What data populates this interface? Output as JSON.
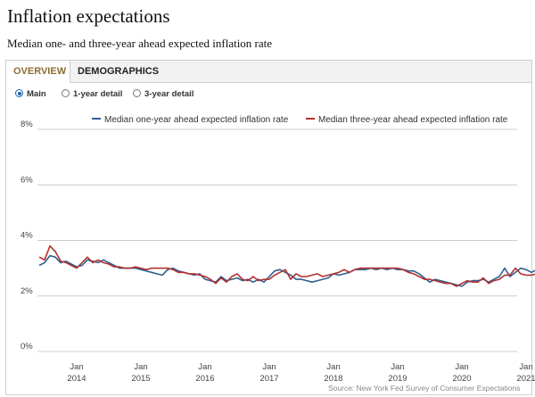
{
  "title": "Inflation expectations",
  "subtitle": "Median one- and three-year ahead expected inflation rate",
  "tabs": [
    {
      "label": "OVERVIEW",
      "active": true
    },
    {
      "label": "DEMOGRAPHICS",
      "active": false
    }
  ],
  "radios": [
    {
      "label": "Main",
      "selected": true
    },
    {
      "label": "1-year detail",
      "selected": false
    },
    {
      "label": "3-year detail",
      "selected": false
    }
  ],
  "source": "Source: New York Fed Survey of Consumer Expectations",
  "colors": {
    "one_year": "#2f5f8f",
    "three_year": "#b33030",
    "grid": "#cccccc",
    "tab_active": "#8b6d2e"
  },
  "chart_data": {
    "type": "line",
    "ylim": [
      0,
      8
    ],
    "y_ticks": [
      "0%",
      "2%",
      "4%",
      "6%",
      "8%"
    ],
    "y_tick_values": [
      0,
      2,
      4,
      6,
      8
    ],
    "x_ticks": [
      {
        "label": "Jan",
        "year": "2014",
        "month_index": 7
      },
      {
        "label": "Jan",
        "year": "2015",
        "month_index": 19
      },
      {
        "label": "Jan",
        "year": "2016",
        "month_index": 31
      },
      {
        "label": "Jan",
        "year": "2017",
        "month_index": 43
      },
      {
        "label": "Jan",
        "year": "2018",
        "month_index": 55
      },
      {
        "label": "Jan",
        "year": "2019",
        "month_index": 67
      },
      {
        "label": "Jan",
        "year": "2020",
        "month_index": 79
      },
      {
        "label": "Jan",
        "year": "2021",
        "month_index": 91
      }
    ],
    "x_start": "Jun 2013",
    "series": [
      {
        "name": "Median one-year ahead expected inflation rate",
        "values": [
          3.1,
          3.2,
          3.45,
          3.4,
          3.2,
          3.25,
          3.15,
          3.05,
          3.1,
          3.3,
          3.25,
          3.2,
          3.3,
          3.2,
          3.1,
          3.0,
          3.0,
          3.0,
          3.0,
          2.95,
          2.9,
          2.85,
          2.8,
          2.75,
          2.95,
          3.0,
          2.9,
          2.85,
          2.8,
          2.75,
          2.8,
          2.6,
          2.55,
          2.5,
          2.7,
          2.55,
          2.6,
          2.65,
          2.55,
          2.6,
          2.5,
          2.6,
          2.5,
          2.7,
          2.9,
          2.95,
          2.85,
          2.75,
          2.6,
          2.6,
          2.55,
          2.5,
          2.55,
          2.6,
          2.65,
          2.8,
          2.75,
          2.8,
          2.85,
          2.95,
          2.95,
          2.95,
          3.0,
          2.95,
          3.0,
          2.95,
          3.0,
          2.95,
          2.95,
          2.9,
          2.9,
          2.8,
          2.65,
          2.5,
          2.6,
          2.55,
          2.5,
          2.45,
          2.4,
          2.35,
          2.5,
          2.55,
          2.55,
          2.6,
          2.5,
          2.6,
          2.7,
          3.0,
          2.7,
          2.85,
          3.0,
          2.95,
          2.85,
          2.95
        ]
      },
      {
        "name": "Median three-year ahead expected inflation rate",
        "values": [
          3.4,
          3.3,
          3.8,
          3.6,
          3.25,
          3.2,
          3.1,
          3.0,
          3.2,
          3.4,
          3.2,
          3.3,
          3.2,
          3.15,
          3.05,
          3.05,
          3.0,
          3.0,
          3.05,
          3.0,
          2.95,
          3.0,
          3.0,
          3.0,
          3.0,
          2.95,
          2.85,
          2.85,
          2.8,
          2.8,
          2.75,
          2.7,
          2.6,
          2.45,
          2.65,
          2.5,
          2.7,
          2.8,
          2.6,
          2.55,
          2.7,
          2.55,
          2.6,
          2.6,
          2.75,
          2.85,
          2.95,
          2.6,
          2.8,
          2.7,
          2.7,
          2.75,
          2.8,
          2.7,
          2.75,
          2.8,
          2.85,
          2.95,
          2.85,
          2.95,
          3.0,
          3.0,
          3.0,
          3.0,
          3.0,
          3.0,
          3.0,
          3.0,
          2.95,
          2.85,
          2.8,
          2.7,
          2.6,
          2.6,
          2.55,
          2.5,
          2.45,
          2.45,
          2.35,
          2.45,
          2.55,
          2.5,
          2.5,
          2.65,
          2.45,
          2.55,
          2.6,
          2.75,
          2.75,
          3.0,
          2.8,
          2.75,
          2.75,
          2.8
        ]
      }
    ]
  }
}
